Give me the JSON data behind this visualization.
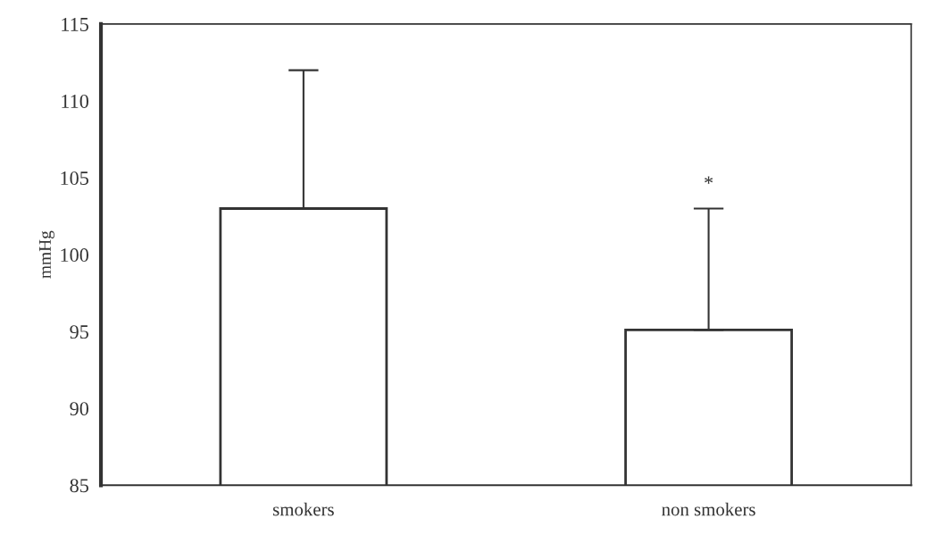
{
  "chart_data": {
    "type": "bar",
    "ylabel": "mmHg",
    "categories": [
      "smokers",
      "non smokers"
    ],
    "values": [
      103,
      95.1
    ],
    "errors": [
      [
        103,
        112
      ],
      [
        95.1,
        103
      ]
    ],
    "color": "#ffffff",
    "ylim": [
      85,
      115
    ],
    "yticks": [
      85,
      90,
      95,
      100,
      105,
      110,
      115
    ],
    "grid": false,
    "annotations": [
      "*"
    ]
  }
}
